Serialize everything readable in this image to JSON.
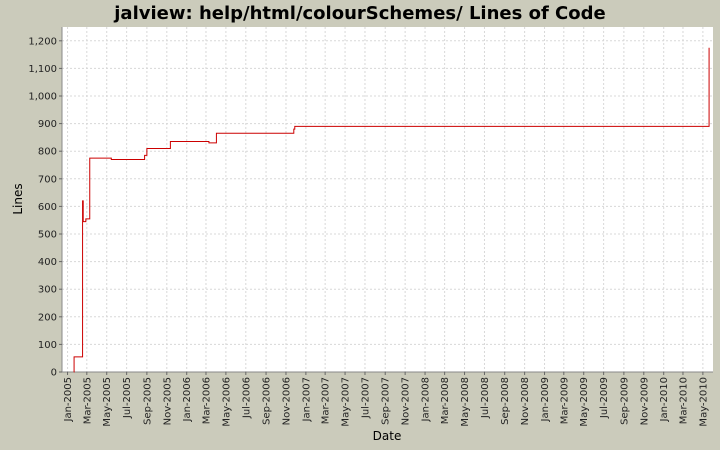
{
  "chart_data": {
    "type": "line",
    "title": "jalview: help/html/colourSchemes/ Lines of Code",
    "xlabel": "Date",
    "ylabel": "Lines",
    "ylim": [
      0,
      1250
    ],
    "xlim": [
      "2004-12-15",
      "2010-06-01"
    ],
    "grid": true,
    "y_ticks": [
      0,
      100,
      200,
      300,
      400,
      500,
      600,
      700,
      800,
      900,
      1000,
      1100,
      1200
    ],
    "y_tick_labels": [
      "0",
      "100",
      "200",
      "300",
      "400",
      "500",
      "600",
      "700",
      "800",
      "900",
      "1,000",
      "1,100",
      "1,200"
    ],
    "x_ticks": [
      {
        "date": "2005-01-01",
        "label": "Jan-2005"
      },
      {
        "date": "2005-03-01",
        "label": "Mar-2005"
      },
      {
        "date": "2005-05-01",
        "label": "May-2005"
      },
      {
        "date": "2005-07-01",
        "label": "Jul-2005"
      },
      {
        "date": "2005-09-01",
        "label": "Sep-2005"
      },
      {
        "date": "2005-11-01",
        "label": "Nov-2005"
      },
      {
        "date": "2006-01-01",
        "label": "Jan-2006"
      },
      {
        "date": "2006-03-01",
        "label": "Mar-2006"
      },
      {
        "date": "2006-05-01",
        "label": "May-2006"
      },
      {
        "date": "2006-07-01",
        "label": "Jul-2006"
      },
      {
        "date": "2006-09-01",
        "label": "Sep-2006"
      },
      {
        "date": "2006-11-01",
        "label": "Nov-2006"
      },
      {
        "date": "2007-01-01",
        "label": "Jan-2007"
      },
      {
        "date": "2007-03-01",
        "label": "Mar-2007"
      },
      {
        "date": "2007-05-01",
        "label": "May-2007"
      },
      {
        "date": "2007-07-01",
        "label": "Jul-2007"
      },
      {
        "date": "2007-09-01",
        "label": "Sep-2007"
      },
      {
        "date": "2007-11-01",
        "label": "Nov-2007"
      },
      {
        "date": "2008-01-01",
        "label": "Jan-2008"
      },
      {
        "date": "2008-03-01",
        "label": "Mar-2008"
      },
      {
        "date": "2008-05-01",
        "label": "May-2008"
      },
      {
        "date": "2008-07-01",
        "label": "Jul-2008"
      },
      {
        "date": "2008-09-01",
        "label": "Sep-2008"
      },
      {
        "date": "2008-11-01",
        "label": "Nov-2008"
      },
      {
        "date": "2009-01-01",
        "label": "Jan-2009"
      },
      {
        "date": "2009-03-01",
        "label": "Mar-2009"
      },
      {
        "date": "2009-05-01",
        "label": "May-2009"
      },
      {
        "date": "2009-07-01",
        "label": "Jul-2009"
      },
      {
        "date": "2009-09-01",
        "label": "Sep-2009"
      },
      {
        "date": "2009-11-01",
        "label": "Nov-2009"
      },
      {
        "date": "2010-01-01",
        "label": "Jan-2010"
      },
      {
        "date": "2010-03-01",
        "label": "Mar-2010"
      },
      {
        "date": "2010-05-01",
        "label": "May-2010"
      }
    ],
    "series": [
      {
        "color": "#cc0000",
        "step": true,
        "points": [
          {
            "x": "2005-01-20",
            "y": 0
          },
          {
            "x": "2005-01-21",
            "y": 55
          },
          {
            "x": "2005-02-15",
            "y": 55
          },
          {
            "x": "2005-02-16",
            "y": 620
          },
          {
            "x": "2005-02-18",
            "y": 545
          },
          {
            "x": "2005-02-26",
            "y": 555
          },
          {
            "x": "2005-03-10",
            "y": 775
          },
          {
            "x": "2005-05-15",
            "y": 770
          },
          {
            "x": "2005-08-25",
            "y": 785
          },
          {
            "x": "2005-09-01",
            "y": 810
          },
          {
            "x": "2005-11-12",
            "y": 835
          },
          {
            "x": "2006-03-10",
            "y": 830
          },
          {
            "x": "2006-04-02",
            "y": 865
          },
          {
            "x": "2006-11-25",
            "y": 880
          },
          {
            "x": "2006-11-28",
            "y": 890
          },
          {
            "x": "2010-05-18",
            "y": 890
          },
          {
            "x": "2010-05-20",
            "y": 1175
          }
        ]
      }
    ]
  }
}
